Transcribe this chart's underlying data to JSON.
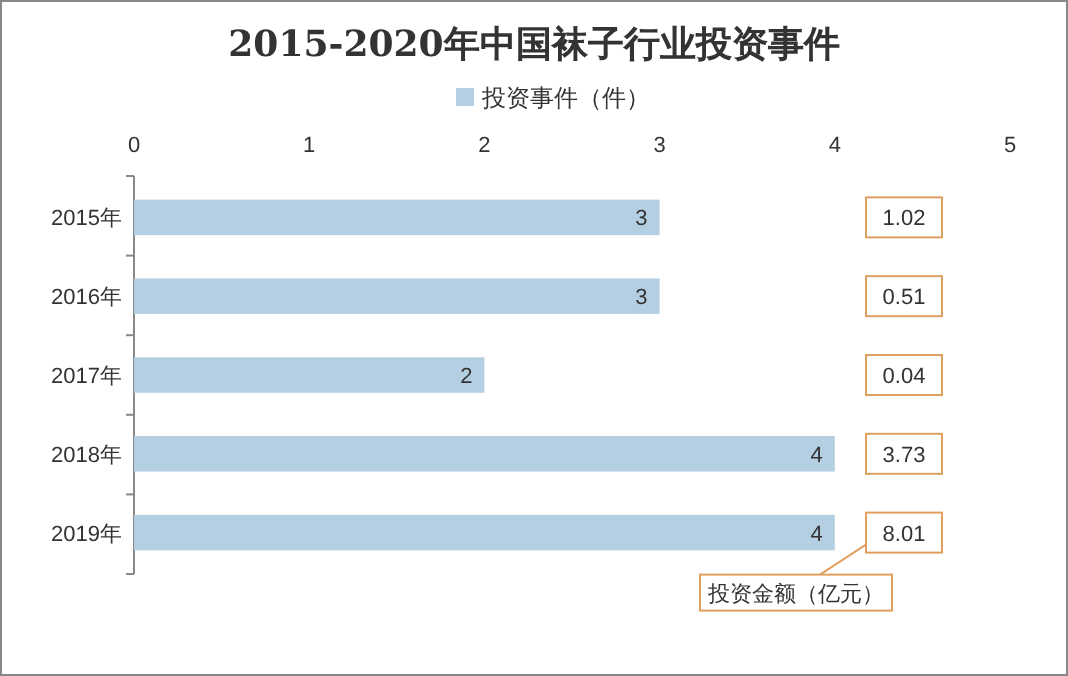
{
  "chart_data": {
    "type": "bar",
    "orientation": "horizontal",
    "title": "2015-2020年中国袜子行业投资事件",
    "categories": [
      "2015年",
      "2016年",
      "2017年",
      "2018年",
      "2019年"
    ],
    "series": [
      {
        "name": "投资事件（件）",
        "color": "#b4cfe2",
        "values": [
          3,
          3,
          2,
          4,
          4
        ]
      }
    ],
    "annotations": [
      {
        "text": "1.02",
        "y": "2015年"
      },
      {
        "text": "0.51",
        "y": "2016年"
      },
      {
        "text": "0.04",
        "y": "2017年"
      },
      {
        "text": "3.73",
        "y": "2018年"
      },
      {
        "text": "8.01",
        "y": "2019年"
      },
      "投资金额（亿元）"
    ],
    "xlim": [
      0,
      5
    ],
    "xticks": [
      0,
      1,
      2,
      3,
      4,
      5
    ],
    "data_labels": true,
    "legend": "top",
    "grid": false
  }
}
